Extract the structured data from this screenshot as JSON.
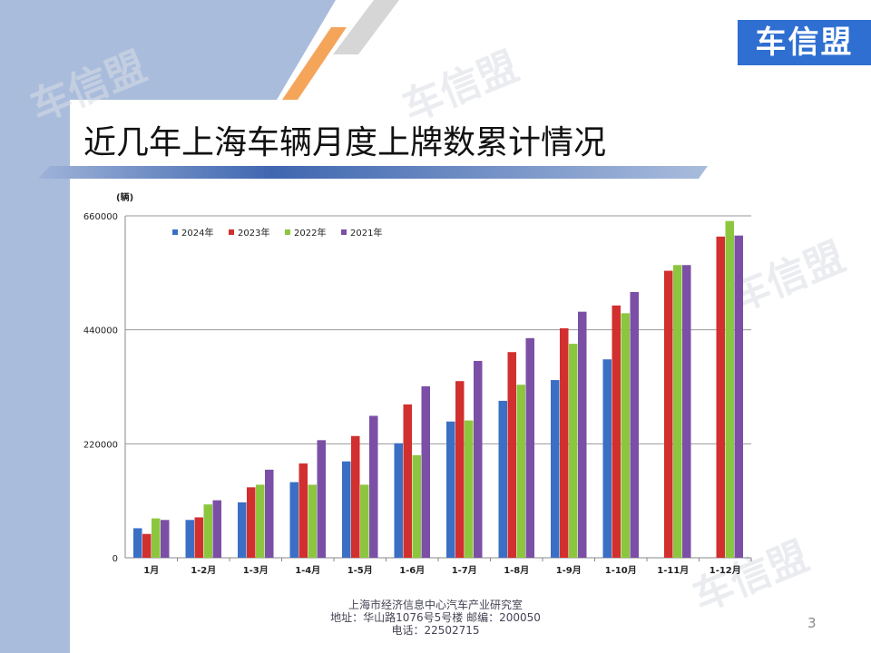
{
  "logo_text": "车信盟",
  "watermark_text": "车信盟",
  "title": "近几年上海车辆月度上牌数累计情况",
  "footer": {
    "line1": "上海市经济信息中心汽车产业研究室",
    "line2": "地址：华山路1076号5号楼   邮编：200050",
    "line3": "电话：22502715"
  },
  "page_number": "3",
  "colors": {
    "2024年": "#3a6fc4",
    "2023年": "#d22f2f",
    "2022年": "#8cc63f",
    "2021年": "#7b4fa6"
  },
  "chart_data": {
    "type": "bar",
    "ylabel": "(辆)",
    "ylim": [
      0,
      660000
    ],
    "yticks": [
      0,
      220000,
      440000,
      660000
    ],
    "grid": true,
    "legend_position": "top-left",
    "categories": [
      "1月",
      "1-2月",
      "1-3月",
      "1-4月",
      "1-5月",
      "1-6月",
      "1-7月",
      "1-8月",
      "1-9月",
      "1-10月",
      "1-11月",
      "1-12月"
    ],
    "series": [
      {
        "name": "2024年",
        "color": "#3a6fc4",
        "values": [
          57000,
          73000,
          107000,
          146000,
          186000,
          221000,
          263000,
          303000,
          343000,
          383000,
          null,
          null
        ]
      },
      {
        "name": "2023年",
        "color": "#d22f2f",
        "values": [
          46000,
          78000,
          136000,
          182000,
          235000,
          296000,
          341000,
          397000,
          443000,
          487000,
          554000,
          620000
        ]
      },
      {
        "name": "2022年",
        "color": "#8cc63f",
        "values": [
          76000,
          103000,
          141000,
          141000,
          141000,
          198000,
          265000,
          334000,
          413000,
          472000,
          565000,
          650000
        ]
      },
      {
        "name": "2021年",
        "color": "#7b4fa6",
        "values": [
          73000,
          111000,
          170000,
          227000,
          274000,
          331000,
          380000,
          424000,
          475000,
          513000,
          565000,
          622000
        ]
      }
    ]
  }
}
